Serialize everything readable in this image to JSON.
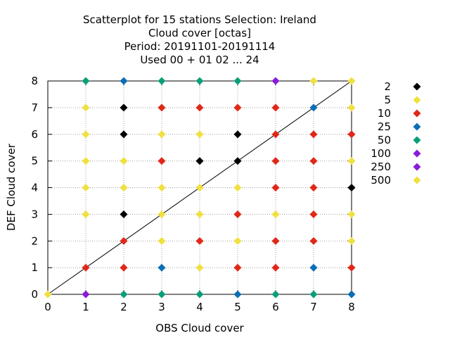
{
  "chart_data": {
    "type": "scatter",
    "title_lines": [
      "Scatterplot for   15 stations Selection: Ireland",
      "Cloud cover [octas]",
      "Period: 20191101-20191114",
      "Used  00 + 01 02 ... 24"
    ],
    "xlabel": "OBS Cloud cover",
    "ylabel": "DEF Cloud cover",
    "xlim": [
      0,
      8
    ],
    "ylim": [
      0,
      8
    ],
    "xticks": [
      "0",
      "1",
      "2",
      "3",
      "4",
      "5",
      "6",
      "7",
      "8"
    ],
    "yticks": [
      "0",
      "1",
      "2",
      "3",
      "4",
      "5",
      "6",
      "7",
      "8"
    ],
    "grid": true,
    "legend_position": "right",
    "marker": "diamond",
    "reference_line": "diagonal",
    "categories": [
      {
        "label": "2",
        "color": "#000000"
      },
      {
        "label": "5",
        "color": "#f0e040"
      },
      {
        "label": "10",
        "color": "#e02818"
      },
      {
        "label": "25",
        "color": "#0a6eb4"
      },
      {
        "label": "50",
        "color": "#0a9e78"
      },
      {
        "label": "100",
        "color": "#8a1ad8"
      },
      {
        "label": "250",
        "color": "#8a1ad8"
      },
      {
        "label": "500",
        "color": "#f0e040"
      }
    ],
    "points": [
      {
        "x": 0,
        "y": 0,
        "cat": 7
      },
      {
        "x": 1,
        "y": 0,
        "cat": 5
      },
      {
        "x": 1,
        "y": 1,
        "cat": 2
      },
      {
        "x": 1,
        "y": 3,
        "cat": 1
      },
      {
        "x": 1,
        "y": 4,
        "cat": 1
      },
      {
        "x": 1,
        "y": 5,
        "cat": 1
      },
      {
        "x": 1,
        "y": 6,
        "cat": 1
      },
      {
        "x": 1,
        "y": 7,
        "cat": 1
      },
      {
        "x": 1,
        "y": 8,
        "cat": 4
      },
      {
        "x": 2,
        "y": 0,
        "cat": 4
      },
      {
        "x": 2,
        "y": 1,
        "cat": 2
      },
      {
        "x": 2,
        "y": 2,
        "cat": 2
      },
      {
        "x": 2,
        "y": 3,
        "cat": 0
      },
      {
        "x": 2,
        "y": 4,
        "cat": 1
      },
      {
        "x": 2,
        "y": 5,
        "cat": 1
      },
      {
        "x": 2,
        "y": 6,
        "cat": 0
      },
      {
        "x": 2,
        "y": 7,
        "cat": 0
      },
      {
        "x": 2,
        "y": 8,
        "cat": 3
      },
      {
        "x": 3,
        "y": 0,
        "cat": 4
      },
      {
        "x": 3,
        "y": 1,
        "cat": 3
      },
      {
        "x": 3,
        "y": 2,
        "cat": 1
      },
      {
        "x": 3,
        "y": 3,
        "cat": 1
      },
      {
        "x": 3,
        "y": 4,
        "cat": 1
      },
      {
        "x": 3,
        "y": 5,
        "cat": 2
      },
      {
        "x": 3,
        "y": 6,
        "cat": 1
      },
      {
        "x": 3,
        "y": 7,
        "cat": 2
      },
      {
        "x": 3,
        "y": 8,
        "cat": 4
      },
      {
        "x": 4,
        "y": 0,
        "cat": 4
      },
      {
        "x": 4,
        "y": 1,
        "cat": 1
      },
      {
        "x": 4,
        "y": 2,
        "cat": 2
      },
      {
        "x": 4,
        "y": 3,
        "cat": 1
      },
      {
        "x": 4,
        "y": 4,
        "cat": 1
      },
      {
        "x": 4,
        "y": 5,
        "cat": 0
      },
      {
        "x": 4,
        "y": 6,
        "cat": 1
      },
      {
        "x": 4,
        "y": 7,
        "cat": 2
      },
      {
        "x": 4,
        "y": 8,
        "cat": 4
      },
      {
        "x": 5,
        "y": 0,
        "cat": 3
      },
      {
        "x": 5,
        "y": 1,
        "cat": 2
      },
      {
        "x": 5,
        "y": 2,
        "cat": 1
      },
      {
        "x": 5,
        "y": 3,
        "cat": 2
      },
      {
        "x": 5,
        "y": 4,
        "cat": 1
      },
      {
        "x": 5,
        "y": 5,
        "cat": 0
      },
      {
        "x": 5,
        "y": 6,
        "cat": 0
      },
      {
        "x": 5,
        "y": 7,
        "cat": 2
      },
      {
        "x": 5,
        "y": 8,
        "cat": 4
      },
      {
        "x": 6,
        "y": 0,
        "cat": 4
      },
      {
        "x": 6,
        "y": 1,
        "cat": 2
      },
      {
        "x": 6,
        "y": 2,
        "cat": 2
      },
      {
        "x": 6,
        "y": 3,
        "cat": 1
      },
      {
        "x": 6,
        "y": 4,
        "cat": 2
      },
      {
        "x": 6,
        "y": 5,
        "cat": 2
      },
      {
        "x": 6,
        "y": 6,
        "cat": 2
      },
      {
        "x": 6,
        "y": 7,
        "cat": 2
      },
      {
        "x": 6,
        "y": 8,
        "cat": 5
      },
      {
        "x": 7,
        "y": 0,
        "cat": 4
      },
      {
        "x": 7,
        "y": 1,
        "cat": 3
      },
      {
        "x": 7,
        "y": 2,
        "cat": 2
      },
      {
        "x": 7,
        "y": 3,
        "cat": 2
      },
      {
        "x": 7,
        "y": 4,
        "cat": 2
      },
      {
        "x": 7,
        "y": 5,
        "cat": 2
      },
      {
        "x": 7,
        "y": 6,
        "cat": 2
      },
      {
        "x": 7,
        "y": 7,
        "cat": 3
      },
      {
        "x": 7,
        "y": 8,
        "cat": 1
      },
      {
        "x": 8,
        "y": 0,
        "cat": 3
      },
      {
        "x": 8,
        "y": 1,
        "cat": 2
      },
      {
        "x": 8,
        "y": 2,
        "cat": 1
      },
      {
        "x": 8,
        "y": 3,
        "cat": 1
      },
      {
        "x": 8,
        "y": 4,
        "cat": 0
      },
      {
        "x": 8,
        "y": 5,
        "cat": 1
      },
      {
        "x": 8,
        "y": 6,
        "cat": 2
      },
      {
        "x": 8,
        "y": 7,
        "cat": 1
      },
      {
        "x": 8,
        "y": 8,
        "cat": 1
      }
    ]
  }
}
